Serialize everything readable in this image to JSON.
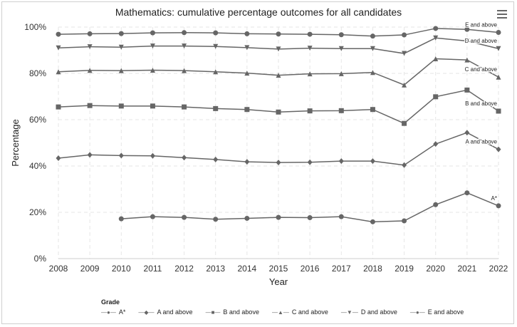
{
  "chart_data": {
    "type": "line",
    "title": "Mathematics: cumulative percentage outcomes for all candidates",
    "xlabel": "Year",
    "ylabel": "Percentage",
    "ylim": [
      0,
      100
    ],
    "yticks": [
      "0%",
      "20%",
      "40%",
      "60%",
      "80%",
      "100%"
    ],
    "x": [
      "2008",
      "2009",
      "2010",
      "2011",
      "2012",
      "2013",
      "2014",
      "2015",
      "2016",
      "2017",
      "2018",
      "2019",
      "2020",
      "2021",
      "2022"
    ],
    "grid": true,
    "legend_title": "Grade",
    "legend_position": "bottom-left",
    "series": [
      {
        "name": "A*",
        "marker": "circle",
        "end_label": "A*",
        "values": [
          null,
          null,
          17.2,
          18.1,
          17.8,
          17.0,
          17.4,
          17.8,
          17.7,
          18.1,
          15.9,
          16.3,
          23.3,
          28.4,
          22.8
        ]
      },
      {
        "name": "A and above",
        "marker": "diamond",
        "end_label": "A and above",
        "values": [
          43.4,
          44.8,
          44.5,
          44.4,
          43.6,
          42.8,
          41.8,
          41.5,
          41.6,
          42.1,
          42.1,
          40.4,
          49.5,
          54.4,
          47.2
        ]
      },
      {
        "name": "B and above",
        "marker": "square",
        "end_label": "B and above",
        "values": [
          65.5,
          66.1,
          65.9,
          65.9,
          65.5,
          64.8,
          64.4,
          63.3,
          63.8,
          63.9,
          64.4,
          58.4,
          69.9,
          72.8,
          63.7
        ]
      },
      {
        "name": "C and above",
        "marker": "triangle",
        "end_label": "C and above",
        "values": [
          80.7,
          81.3,
          81.2,
          81.4,
          81.2,
          80.7,
          80.1,
          79.2,
          79.8,
          79.9,
          80.4,
          75.0,
          86.3,
          85.8,
          78.4
        ]
      },
      {
        "name": "D and above",
        "marker": "triangle-down",
        "end_label": "D and above",
        "values": [
          91.0,
          91.5,
          91.3,
          91.8,
          91.8,
          91.6,
          91.1,
          90.5,
          90.9,
          90.7,
          90.7,
          88.6,
          95.3,
          94.0,
          90.7
        ]
      },
      {
        "name": "E and above",
        "marker": "circle",
        "end_label": "E and above",
        "values": [
          96.9,
          97.1,
          97.2,
          97.5,
          97.6,
          97.5,
          97.1,
          97.0,
          96.9,
          96.7,
          96.1,
          96.6,
          99.4,
          99.0,
          97.7
        ]
      }
    ],
    "colors": {
      "series": "#666666",
      "grid": "#e6e6e6",
      "axis_text": "#333333"
    }
  },
  "ui": {
    "menu_icon": "hamburger-menu-icon"
  }
}
